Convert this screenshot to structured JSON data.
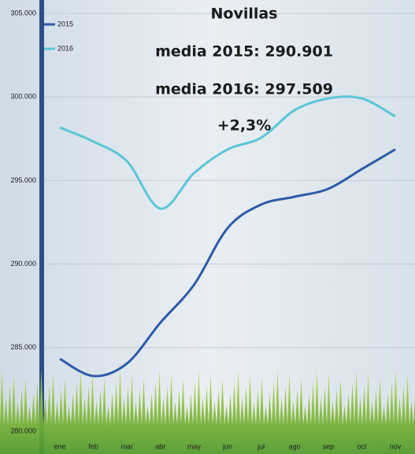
{
  "chart_data": {
    "type": "line",
    "title": "Novillas",
    "annotations": [
      "media 2015: 290.901",
      "media 2016: 297.509",
      "+2,3%"
    ],
    "categories": [
      "ene",
      "feb",
      "mar",
      "abr",
      "may",
      "jun",
      "jul",
      "ago",
      "sep",
      "oct",
      "nov"
    ],
    "series": [
      {
        "name": "2015",
        "color": "#2e5aa8",
        "values": [
          284330,
          283300,
          284050,
          286500,
          288760,
          292150,
          293560,
          294030,
          294500,
          295680,
          296860
        ]
      },
      {
        "name": "2016",
        "color": "#5cc6d6",
        "values": [
          298170,
          297330,
          296150,
          293320,
          295440,
          296860,
          297560,
          299210,
          299910,
          299910,
          298830
        ]
      }
    ],
    "ylim": [
      280000,
      305000
    ],
    "yticks": [
      {
        "value": 280000,
        "label": "280.000"
      },
      {
        "value": 285000,
        "label": "285.000"
      },
      {
        "value": 290000,
        "label": "290.000"
      },
      {
        "value": 295000,
        "label": "295.000"
      },
      {
        "value": 300000,
        "label": "300.000"
      },
      {
        "value": 305000,
        "label": "305.000"
      }
    ],
    "grid": true,
    "legend": "top-left"
  }
}
